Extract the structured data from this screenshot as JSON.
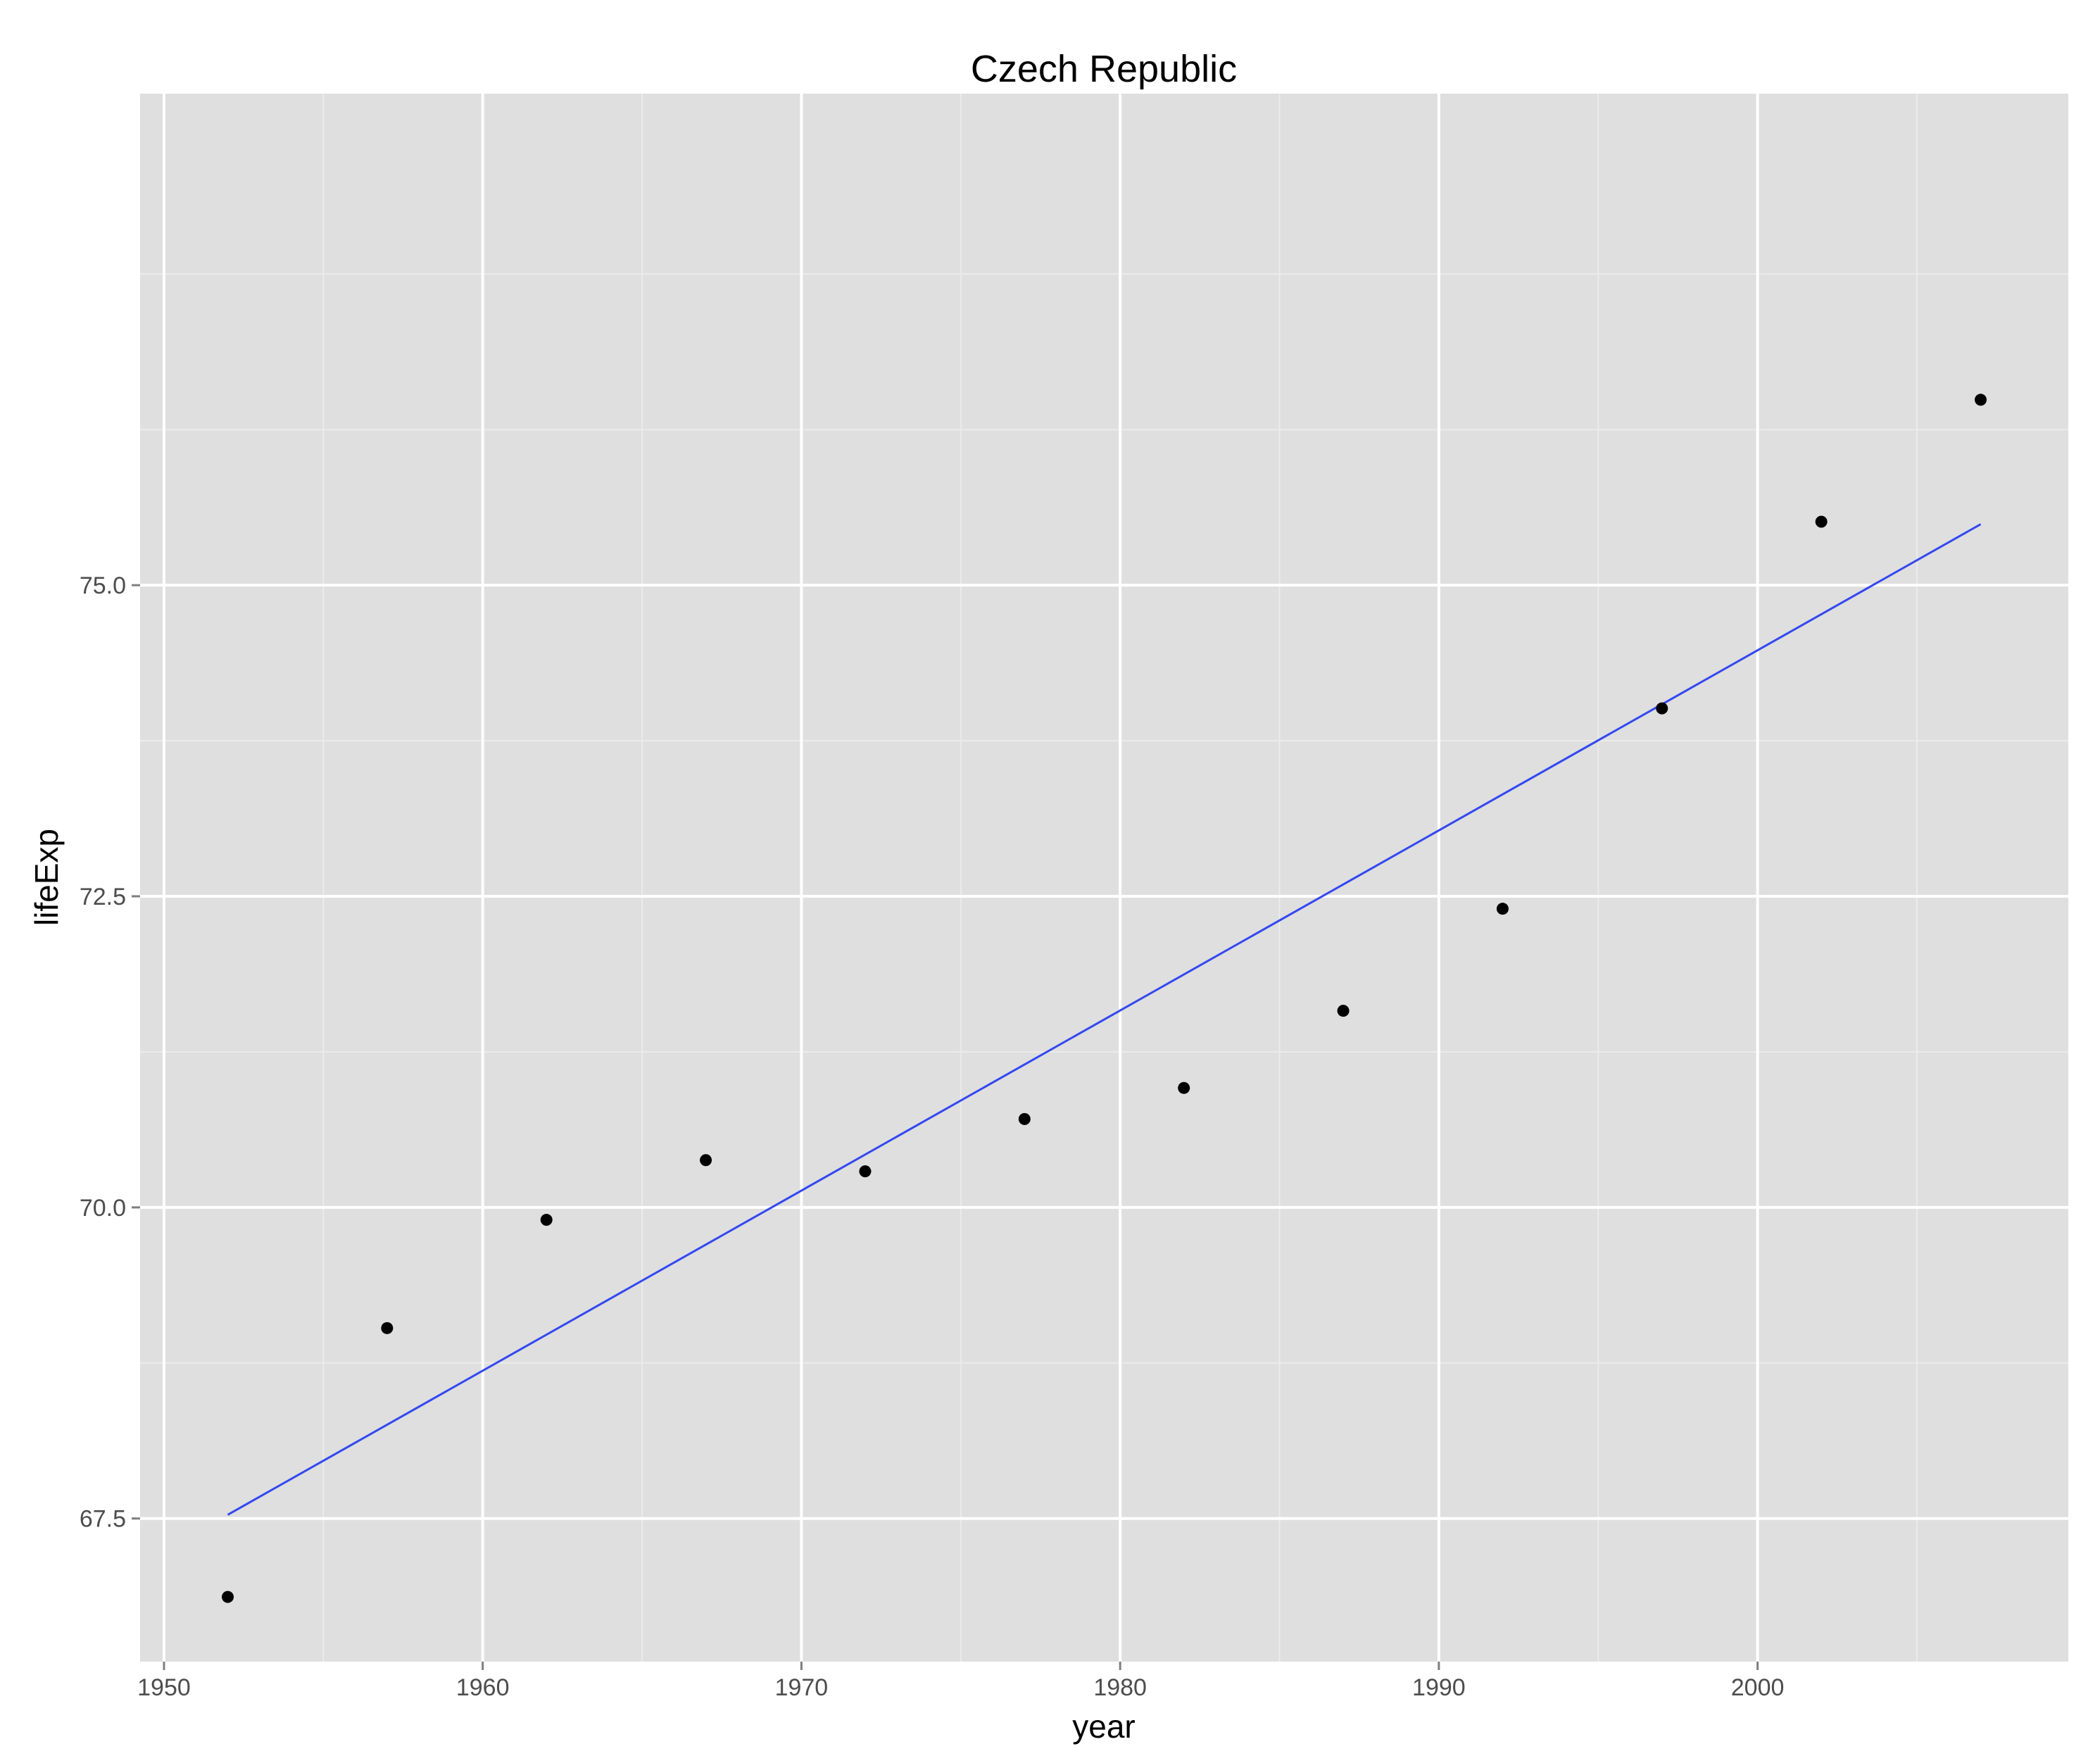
{
  "chart_data": {
    "type": "scatter",
    "title": "Czech Republic",
    "xlabel": "year",
    "ylabel": "lifeExp",
    "xlim": [
      1949.25,
      2009.75
    ],
    "ylim": [
      66.35,
      78.95
    ],
    "x_ticks": [
      1950,
      1960,
      1970,
      1980,
      1990,
      2000
    ],
    "x_tick_labels": [
      "1950",
      "1960",
      "1970",
      "1980",
      "1990",
      "2000"
    ],
    "x_minor_ticks": [
      1955,
      1965,
      1975,
      1985,
      1995,
      2005
    ],
    "y_ticks": [
      67.5,
      70.0,
      72.5,
      75.0
    ],
    "y_tick_labels": [
      "67.5",
      "70.0",
      "72.5",
      "75.0"
    ],
    "y_minor_ticks": [
      68.75,
      71.25,
      73.75,
      76.25,
      77.5
    ],
    "grid": true,
    "series": [
      {
        "x": [
          1952,
          1957,
          1962,
          1967,
          1972,
          1977,
          1982,
          1987,
          1992,
          1997,
          2002,
          2007
        ],
        "y": [
          66.87,
          69.03,
          69.9,
          70.38,
          70.29,
          70.71,
          70.96,
          71.58,
          72.4,
          74.01,
          75.51,
          76.49
        ]
      }
    ],
    "trendline": {
      "type": "linear",
      "x": [
        1952,
        2007
      ],
      "y": [
        67.53,
        75.49
      ]
    },
    "colors": {
      "panel_background": "#dfdfdf",
      "grid_major": "#ffffff",
      "grid_minor": "#ebebeb",
      "points": "#000000",
      "trendline": "#3348f0"
    }
  }
}
